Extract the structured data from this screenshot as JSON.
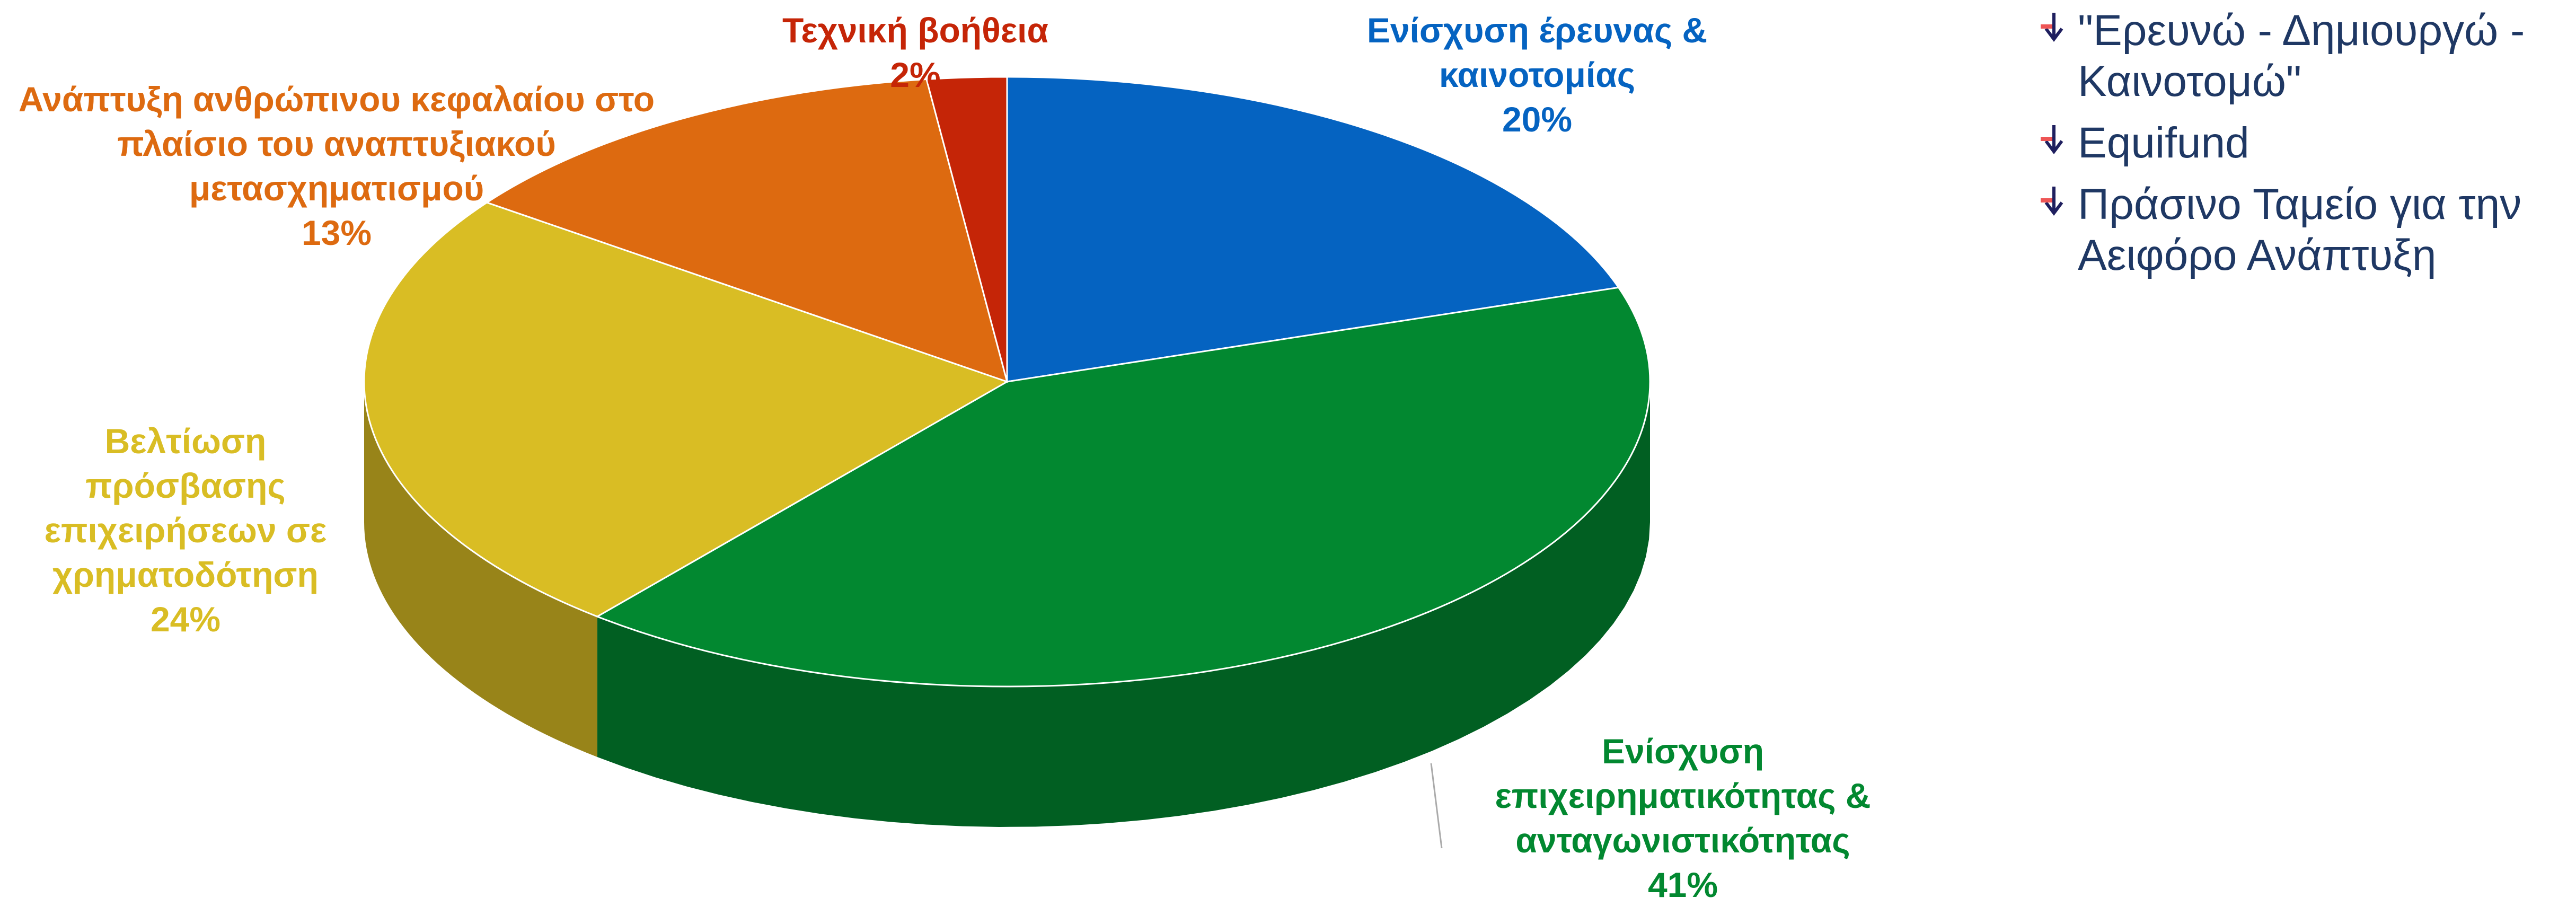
{
  "chart_data": {
    "type": "pie",
    "categories": [
      "Ενίσχυση έρευνας & καινοτομίας",
      "Ενίσχυση επιχειρηματικότητας & ανταγωνιστικότητας",
      "Βελτίωση πρόσβασης επιχειρήσεων σε χρηματοδότηση",
      "Ανάπτυξη ανθρώπινου κεφαλαίου στο πλαίσιο του αναπτυξιακού μετασχηματισμού",
      "Τεχνική βοήθεια"
    ],
    "values": [
      20,
      41,
      24,
      13,
      2
    ],
    "value_labels": [
      "20%",
      "41%",
      "24%",
      "13%",
      "2%"
    ],
    "colors": [
      "#0563c1",
      "#028830",
      "#d9bd24",
      "#dd6a10",
      "#c52507"
    ]
  },
  "bullets": [
    "\"Ερευνώ - Δημιουργώ - Καινοτομώ\"",
    "Equifund",
    "Πράσινο Ταμείο για την Αειφόρο Ανάπτυξη"
  ]
}
